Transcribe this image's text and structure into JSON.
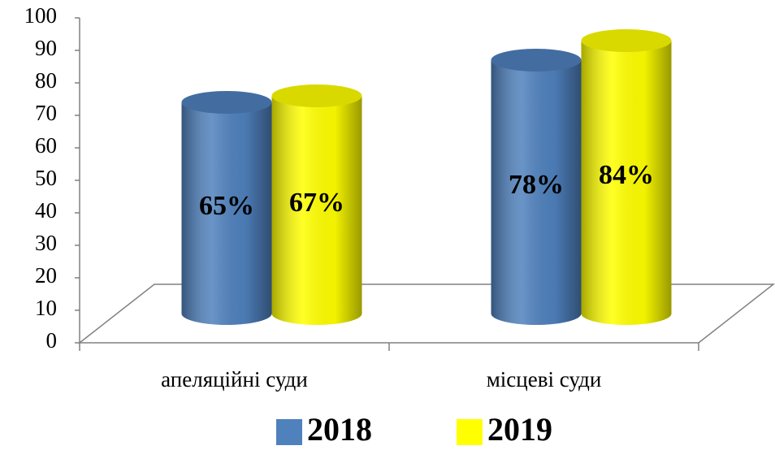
{
  "chart_data": {
    "type": "bar3d",
    "categories": [
      "апеляційні суди",
      "місцеві суди"
    ],
    "series": [
      {
        "name": "2018",
        "color": "#4f81bd",
        "values": [
          65,
          78
        ],
        "value_labels": [
          "65%",
          "78%"
        ]
      },
      {
        "name": "2019",
        "color": "#ffff00",
        "values": [
          67,
          84
        ],
        "value_labels": [
          "67%",
          "84%"
        ]
      }
    ],
    "ylim": [
      0,
      100
    ],
    "yticks": [
      0,
      10,
      20,
      30,
      40,
      50,
      60,
      70,
      80,
      90,
      100
    ]
  }
}
